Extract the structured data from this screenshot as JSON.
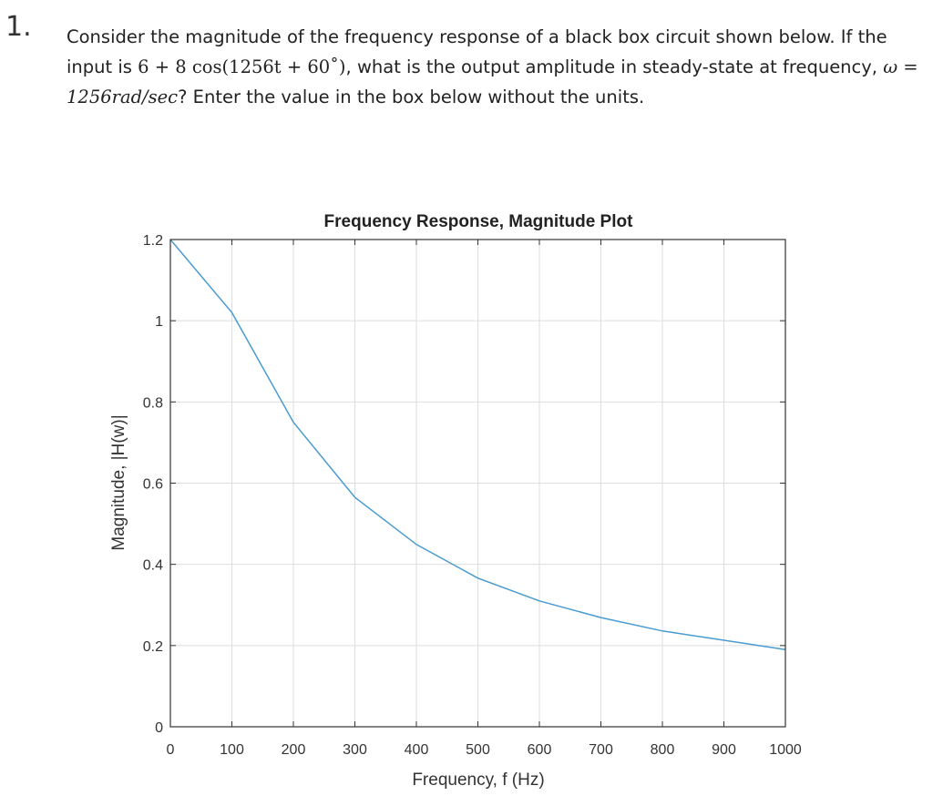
{
  "question": {
    "number": "1.",
    "text_before": "Consider the magnitude of the frequency response of a black box circuit shown below. If the input is ",
    "input_expr": "6 + 8 cos(1256t + 60˚)",
    "text_middle": ", what is the output amplitude in steady-state at frequency, ",
    "omega_expr": "ω = 1256rad/sec",
    "text_after": "? Enter the value in the box below without the units."
  },
  "chart_data": {
    "type": "line",
    "title": "Frequency Response, Magnitude Plot",
    "xlabel": "Frequency, f (Hz)",
    "ylabel": "Magnitude, |H(w)|",
    "xlim": [
      0,
      1000
    ],
    "ylim": [
      0,
      1.2
    ],
    "xticks": [
      0,
      100,
      200,
      300,
      400,
      500,
      600,
      700,
      800,
      900,
      1000
    ],
    "xtick_labels": [
      "0",
      "100",
      "200",
      "300",
      "400",
      "500",
      "600",
      "700",
      "800",
      "900",
      "1000"
    ],
    "yticks": [
      0,
      0.2,
      0.4,
      0.6,
      0.8,
      1,
      1.2
    ],
    "ytick_labels": [
      "0",
      "0.2",
      "0.4",
      "0.6",
      "0.8",
      "1",
      "1.2"
    ],
    "grid": true,
    "line_color": "#4a9bd0",
    "x": [
      0,
      100,
      200,
      300,
      400,
      500,
      600,
      700,
      800,
      900,
      1000
    ],
    "y": [
      1.2,
      1.02,
      0.75,
      0.565,
      0.449,
      0.366,
      0.31,
      0.269,
      0.236,
      0.213,
      0.19
    ]
  }
}
